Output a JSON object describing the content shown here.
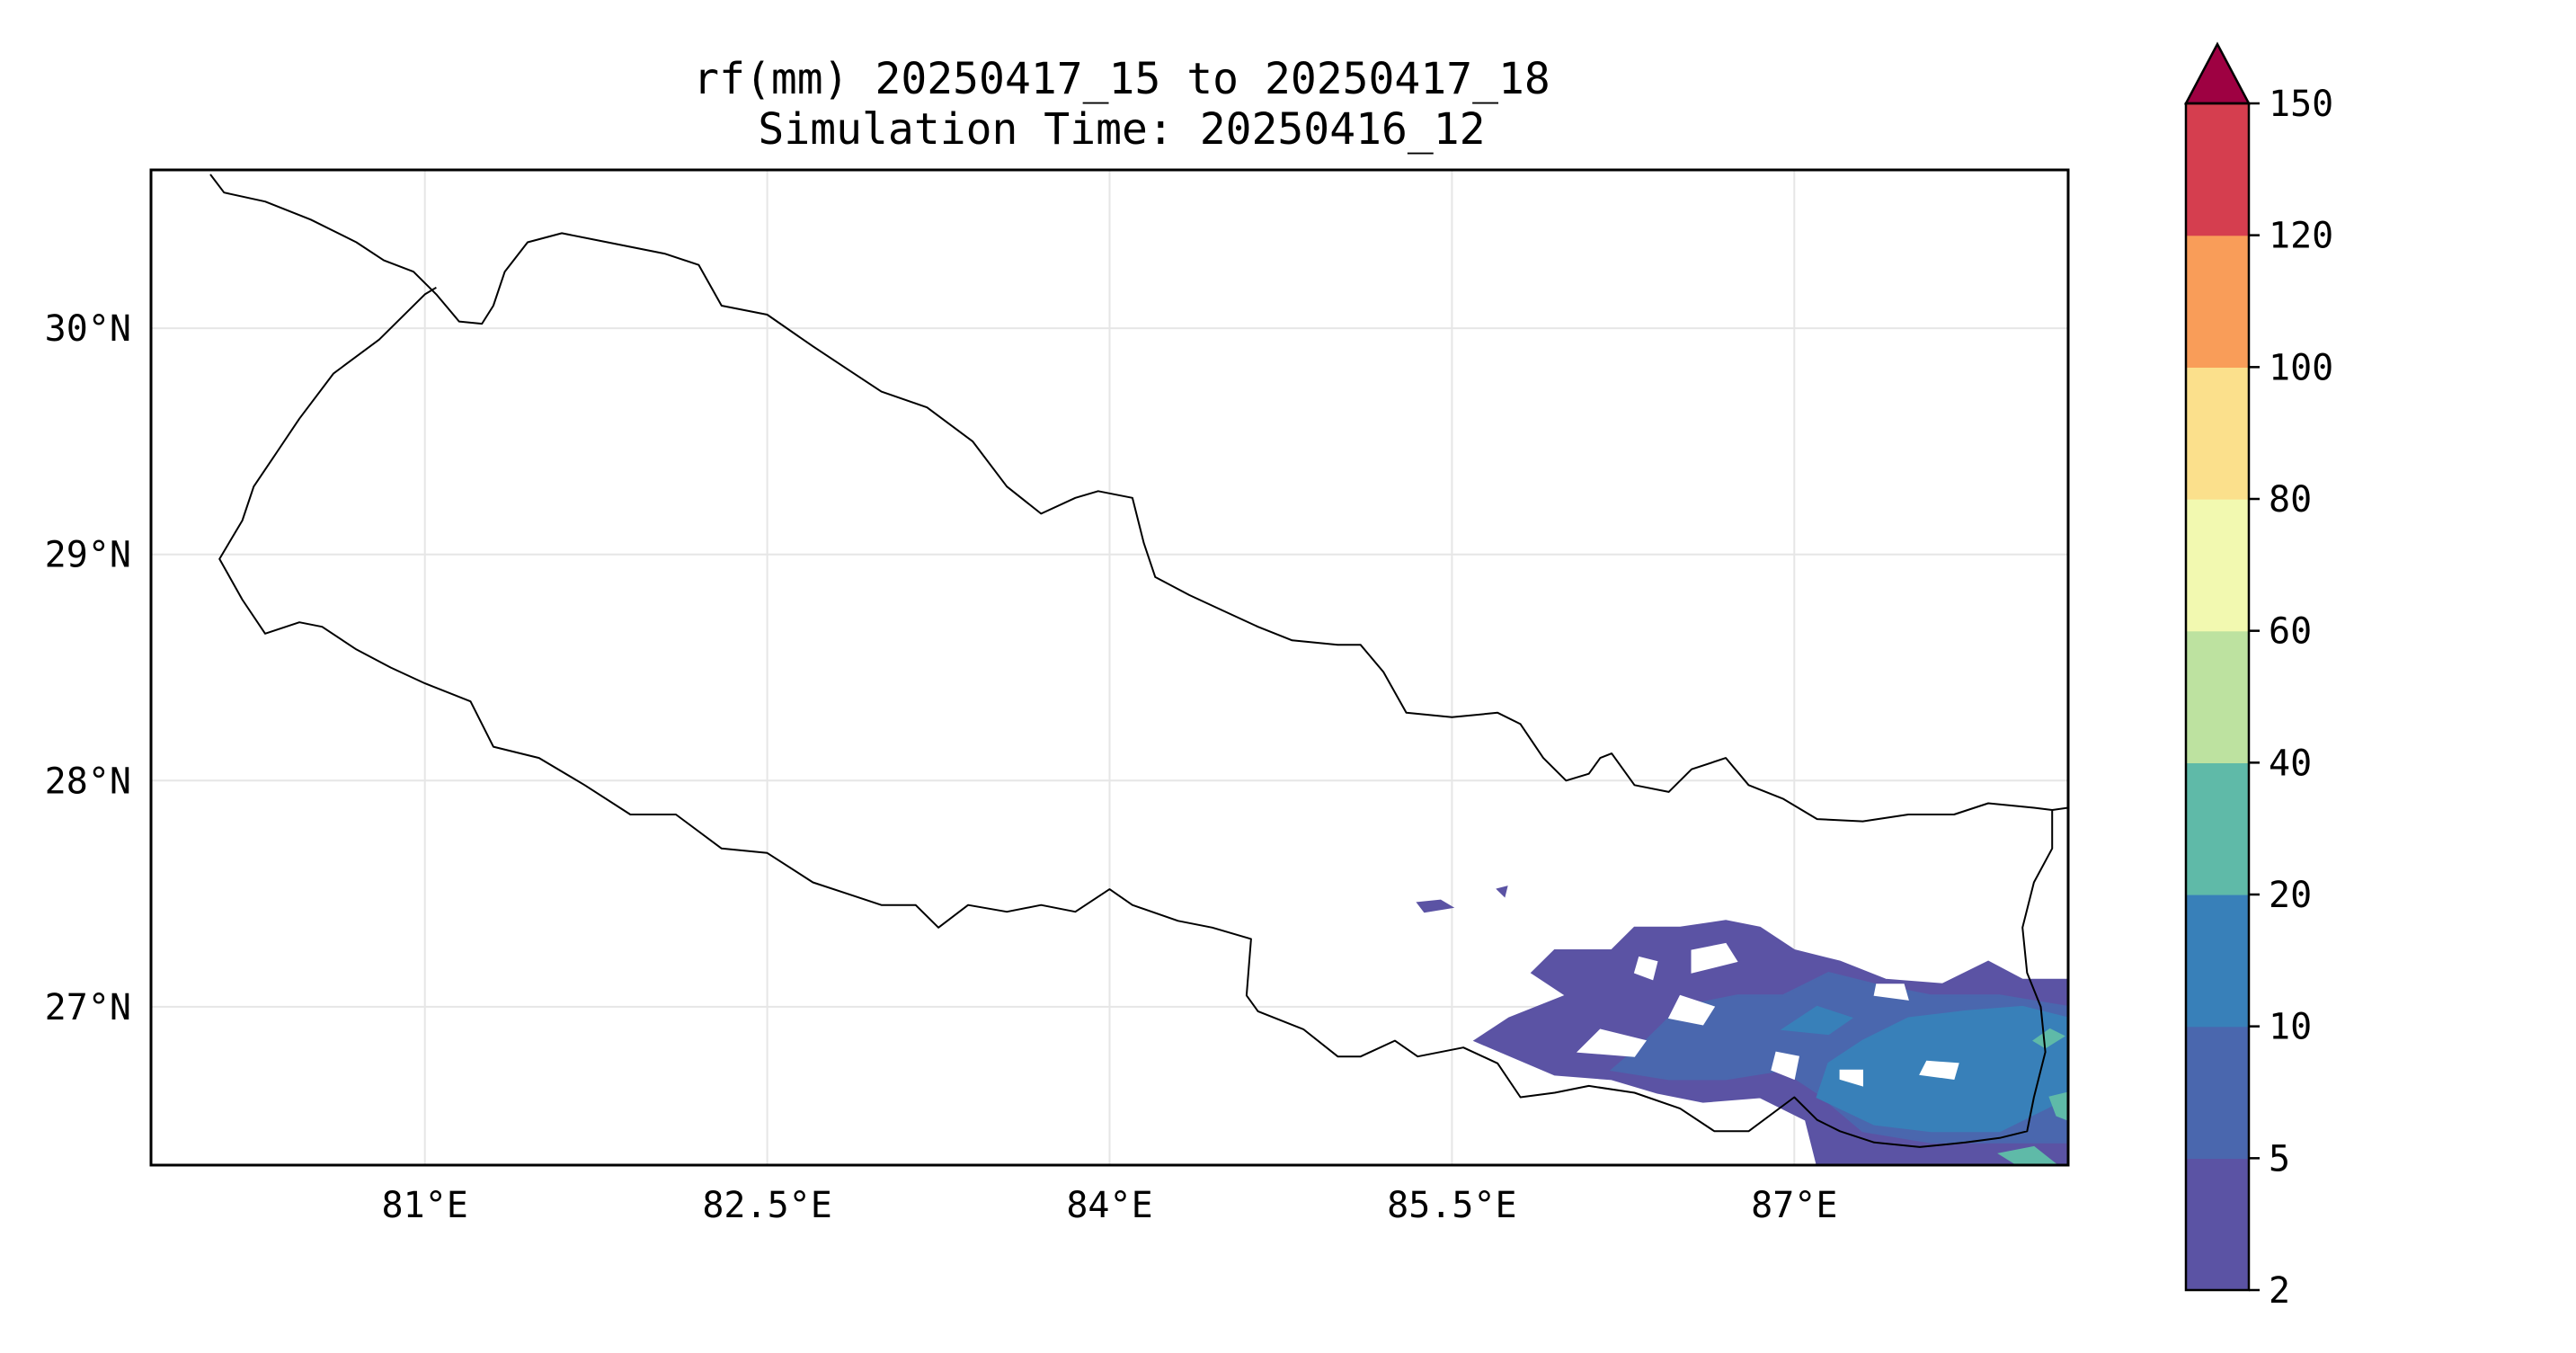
{
  "title": {
    "line1": "rf(mm) 20250417_15 to 20250417_18",
    "line2": "Simulation Time: 20250416_12"
  },
  "map": {
    "lon_range": [
      79.8,
      88.2
    ],
    "lat_range": [
      26.3,
      30.7
    ],
    "x_ticks": [
      {
        "value": 81.0,
        "label": "81°E"
      },
      {
        "value": 82.5,
        "label": "82.5°E"
      },
      {
        "value": 84.0,
        "label": "84°E"
      },
      {
        "value": 85.5,
        "label": "85.5°E"
      },
      {
        "value": 87.0,
        "label": "87°E"
      }
    ],
    "y_ticks": [
      {
        "value": 30.0,
        "label": "30°N"
      },
      {
        "value": 29.0,
        "label": "29°N"
      },
      {
        "value": 28.0,
        "label": "28°N"
      },
      {
        "value": 27.0,
        "label": "27°N"
      }
    ],
    "gridlines": true,
    "nepal_border": [
      [
        80.06,
        30.68
      ],
      [
        80.12,
        30.6
      ],
      [
        80.3,
        30.56
      ],
      [
        80.5,
        30.48
      ],
      [
        80.7,
        30.38
      ],
      [
        80.82,
        30.3
      ],
      [
        80.95,
        30.25
      ],
      [
        81.05,
        30.15
      ],
      [
        81.15,
        30.03
      ],
      [
        81.25,
        30.02
      ],
      [
        81.3,
        30.1
      ],
      [
        81.35,
        30.25
      ],
      [
        81.45,
        30.38
      ],
      [
        81.6,
        30.42
      ],
      [
        81.8,
        30.38
      ],
      [
        82.05,
        30.33
      ],
      [
        82.2,
        30.28
      ],
      [
        82.3,
        30.1
      ],
      [
        82.5,
        30.06
      ],
      [
        82.7,
        29.92
      ],
      [
        82.85,
        29.82
      ],
      [
        83.0,
        29.72
      ],
      [
        83.2,
        29.65
      ],
      [
        83.4,
        29.5
      ],
      [
        83.55,
        29.3
      ],
      [
        83.7,
        29.18
      ],
      [
        83.85,
        29.25
      ],
      [
        83.95,
        29.28
      ],
      [
        84.1,
        29.25
      ],
      [
        84.15,
        29.05
      ],
      [
        84.2,
        28.9
      ],
      [
        84.35,
        28.82
      ],
      [
        84.5,
        28.75
      ],
      [
        84.65,
        28.68
      ],
      [
        84.8,
        28.62
      ],
      [
        85.0,
        28.6
      ],
      [
        85.1,
        28.6
      ],
      [
        85.2,
        28.48
      ],
      [
        85.3,
        28.3
      ],
      [
        85.5,
        28.28
      ],
      [
        85.7,
        28.3
      ],
      [
        85.8,
        28.25
      ],
      [
        85.9,
        28.1
      ],
      [
        86.0,
        28.0
      ],
      [
        86.1,
        28.03
      ],
      [
        86.15,
        28.1
      ],
      [
        86.2,
        28.12
      ],
      [
        86.3,
        27.98
      ],
      [
        86.45,
        27.95
      ],
      [
        86.55,
        28.05
      ],
      [
        86.7,
        28.1
      ],
      [
        86.8,
        27.98
      ],
      [
        86.95,
        27.92
      ],
      [
        87.1,
        27.83
      ],
      [
        87.3,
        27.82
      ],
      [
        87.5,
        27.85
      ],
      [
        87.7,
        27.85
      ],
      [
        87.85,
        27.9
      ],
      [
        88.05,
        27.88
      ],
      [
        88.13,
        27.87
      ],
      [
        88.13,
        27.7
      ],
      [
        88.05,
        27.55
      ],
      [
        88.0,
        27.35
      ],
      [
        88.02,
        27.15
      ],
      [
        88.08,
        27.0
      ],
      [
        88.1,
        26.8
      ],
      [
        88.05,
        26.6
      ],
      [
        88.02,
        26.45
      ],
      [
        87.9,
        26.42
      ],
      [
        87.75,
        26.4
      ],
      [
        87.55,
        26.38
      ],
      [
        87.35,
        26.4
      ],
      [
        87.2,
        26.45
      ],
      [
        87.1,
        26.5
      ],
      [
        87.0,
        26.6
      ],
      [
        86.8,
        26.45
      ],
      [
        86.65,
        26.45
      ],
      [
        86.5,
        26.55
      ],
      [
        86.3,
        26.62
      ],
      [
        86.1,
        26.65
      ],
      [
        85.95,
        26.62
      ],
      [
        85.8,
        26.6
      ],
      [
        85.7,
        26.75
      ],
      [
        85.55,
        26.82
      ],
      [
        85.35,
        26.78
      ],
      [
        85.25,
        26.85
      ],
      [
        85.1,
        26.78
      ],
      [
        85.0,
        26.78
      ],
      [
        84.85,
        26.9
      ],
      [
        84.65,
        26.98
      ],
      [
        84.6,
        27.05
      ],
      [
        84.62,
        27.3
      ],
      [
        84.45,
        27.35
      ],
      [
        84.3,
        27.38
      ],
      [
        84.1,
        27.45
      ],
      [
        84.0,
        27.52
      ],
      [
        83.85,
        27.42
      ],
      [
        83.7,
        27.45
      ],
      [
        83.55,
        27.42
      ],
      [
        83.38,
        27.45
      ],
      [
        83.25,
        27.35
      ],
      [
        83.15,
        27.45
      ],
      [
        83.0,
        27.45
      ],
      [
        82.85,
        27.5
      ],
      [
        82.7,
        27.55
      ],
      [
        82.5,
        27.68
      ],
      [
        82.3,
        27.7
      ],
      [
        82.1,
        27.85
      ],
      [
        81.9,
        27.85
      ],
      [
        81.7,
        27.98
      ],
      [
        81.5,
        28.1
      ],
      [
        81.3,
        28.15
      ],
      [
        81.2,
        28.35
      ],
      [
        81.0,
        28.43
      ],
      [
        80.85,
        28.5
      ],
      [
        80.7,
        28.58
      ],
      [
        80.55,
        28.68
      ],
      [
        80.45,
        28.7
      ],
      [
        80.3,
        28.65
      ],
      [
        80.2,
        28.8
      ],
      [
        80.1,
        28.98
      ],
      [
        80.2,
        29.15
      ],
      [
        80.25,
        29.3
      ],
      [
        80.35,
        29.45
      ],
      [
        80.45,
        29.6
      ],
      [
        80.6,
        29.8
      ],
      [
        80.8,
        29.95
      ],
      [
        81.0,
        30.15
      ],
      [
        81.05,
        30.18
      ]
    ],
    "east_border_segment": [
      [
        88.13,
        27.87
      ],
      [
        88.2,
        27.88
      ]
    ]
  },
  "chart_data": {
    "type": "heatmap",
    "variable": "rf(mm)",
    "levels": [
      2,
      5,
      10,
      20,
      40,
      60,
      80,
      100,
      120,
      150
    ],
    "level_colors": [
      "#5b53a4",
      "#4a67ae",
      "#3880b9",
      "#5fbaa8",
      "#bde2a0",
      "#f2f9b0",
      "#fbe08c",
      "#f99d59",
      "#d53e4f",
      "#9e0142"
    ],
    "extend": "max",
    "regions": [
      {
        "level": 2,
        "polygon": [
          [
            85.6,
            26.85
          ],
          [
            85.95,
            26.7
          ],
          [
            86.2,
            26.68
          ],
          [
            86.4,
            26.62
          ],
          [
            86.6,
            26.58
          ],
          [
            86.85,
            26.6
          ],
          [
            87.05,
            26.5
          ],
          [
            87.1,
            26.3
          ],
          [
            88.2,
            26.3
          ],
          [
            88.2,
            27.12
          ],
          [
            88.0,
            27.12
          ],
          [
            87.85,
            27.2
          ],
          [
            87.65,
            27.1
          ],
          [
            87.4,
            27.12
          ],
          [
            87.2,
            27.2
          ],
          [
            87.0,
            27.25
          ],
          [
            86.85,
            27.35
          ],
          [
            86.7,
            27.38
          ],
          [
            86.5,
            27.35
          ],
          [
            86.3,
            27.35
          ],
          [
            86.2,
            27.25
          ],
          [
            85.95,
            27.25
          ],
          [
            85.85,
            27.15
          ],
          [
            86.0,
            27.05
          ],
          [
            85.75,
            26.95
          ],
          [
            85.6,
            26.85
          ]
        ]
      },
      {
        "level": 2,
        "polygon": [
          [
            85.35,
            27.46
          ],
          [
            85.45,
            27.47
          ],
          [
            85.5,
            27.44
          ],
          [
            85.38,
            27.42
          ],
          [
            85.35,
            27.46
          ]
        ]
      },
      {
        "level": 2,
        "polygon": [
          [
            85.7,
            27.52
          ],
          [
            85.74,
            27.53
          ],
          [
            85.73,
            27.49
          ],
          [
            85.7,
            27.52
          ]
        ]
      },
      {
        "level": 5,
        "polygon": [
          [
            86.2,
            26.72
          ],
          [
            86.45,
            26.68
          ],
          [
            86.7,
            26.68
          ],
          [
            86.95,
            26.72
          ],
          [
            87.1,
            26.62
          ],
          [
            87.3,
            26.45
          ],
          [
            87.6,
            26.4
          ],
          [
            88.2,
            26.4
          ],
          [
            88.2,
            27.0
          ],
          [
            87.9,
            27.05
          ],
          [
            87.6,
            27.05
          ],
          [
            87.35,
            27.1
          ],
          [
            87.15,
            27.15
          ],
          [
            86.95,
            27.05
          ],
          [
            86.75,
            27.05
          ],
          [
            86.5,
            27.0
          ],
          [
            86.35,
            26.85
          ],
          [
            86.2,
            26.72
          ]
        ]
      },
      {
        "level": 10,
        "polygon": [
          [
            87.1,
            26.6
          ],
          [
            87.35,
            26.48
          ],
          [
            87.6,
            26.45
          ],
          [
            87.9,
            26.45
          ],
          [
            88.1,
            26.55
          ],
          [
            88.2,
            26.6
          ],
          [
            88.2,
            26.95
          ],
          [
            88.0,
            27.0
          ],
          [
            87.75,
            26.98
          ],
          [
            87.5,
            26.95
          ],
          [
            87.3,
            26.85
          ],
          [
            87.15,
            26.75
          ],
          [
            87.1,
            26.6
          ]
        ]
      },
      {
        "level": 10,
        "polygon": [
          [
            86.95,
            26.9
          ],
          [
            87.15,
            26.88
          ],
          [
            87.25,
            26.95
          ],
          [
            87.1,
            27.0
          ],
          [
            86.95,
            26.9
          ]
        ]
      },
      {
        "level": 20,
        "polygon": [
          [
            88.05,
            26.85
          ],
          [
            88.12,
            26.9
          ],
          [
            88.18,
            26.87
          ],
          [
            88.1,
            26.82
          ],
          [
            88.05,
            26.85
          ]
        ]
      },
      {
        "level": 20,
        "polygon": [
          [
            87.9,
            26.35
          ],
          [
            88.05,
            26.38
          ],
          [
            88.15,
            26.3
          ],
          [
            87.98,
            26.3
          ],
          [
            87.9,
            26.35
          ]
        ]
      },
      {
        "level": 20,
        "polygon": [
          [
            88.12,
            26.6
          ],
          [
            88.2,
            26.62
          ],
          [
            88.2,
            26.5
          ],
          [
            88.15,
            26.52
          ],
          [
            88.12,
            26.6
          ]
        ]
      }
    ],
    "holes": [
      [
        [
          86.05,
          26.8
        ],
        [
          86.3,
          26.78
        ],
        [
          86.35,
          26.85
        ],
        [
          86.15,
          26.9
        ],
        [
          86.05,
          26.8
        ]
      ],
      [
        [
          86.45,
          26.95
        ],
        [
          86.6,
          26.92
        ],
        [
          86.65,
          27.0
        ],
        [
          86.5,
          27.05
        ],
        [
          86.45,
          26.95
        ]
      ],
      [
        [
          86.55,
          27.15
        ],
        [
          86.75,
          27.2
        ],
        [
          86.7,
          27.28
        ],
        [
          86.55,
          27.25
        ],
        [
          86.55,
          27.15
        ]
      ],
      [
        [
          86.9,
          26.72
        ],
        [
          87.0,
          26.68
        ],
        [
          87.02,
          26.78
        ],
        [
          86.92,
          26.8
        ],
        [
          86.9,
          26.72
        ]
      ],
      [
        [
          87.35,
          27.05
        ],
        [
          87.5,
          27.03
        ],
        [
          87.48,
          27.1
        ],
        [
          87.36,
          27.1
        ],
        [
          87.35,
          27.05
        ]
      ],
      [
        [
          87.55,
          26.7
        ],
        [
          87.7,
          26.68
        ],
        [
          87.72,
          26.75
        ],
        [
          87.58,
          26.76
        ],
        [
          87.55,
          26.7
        ]
      ],
      [
        [
          87.2,
          26.68
        ],
        [
          87.3,
          26.65
        ],
        [
          87.3,
          26.72
        ],
        [
          87.2,
          26.72
        ],
        [
          87.2,
          26.68
        ]
      ],
      [
        [
          86.3,
          27.15
        ],
        [
          86.38,
          27.12
        ],
        [
          86.4,
          27.2
        ],
        [
          86.32,
          27.22
        ],
        [
          86.3,
          27.15
        ]
      ]
    ]
  },
  "colorbar": {
    "tick_labels": [
      "2",
      "5",
      "10",
      "20",
      "40",
      "60",
      "80",
      "100",
      "120",
      "150"
    ]
  }
}
